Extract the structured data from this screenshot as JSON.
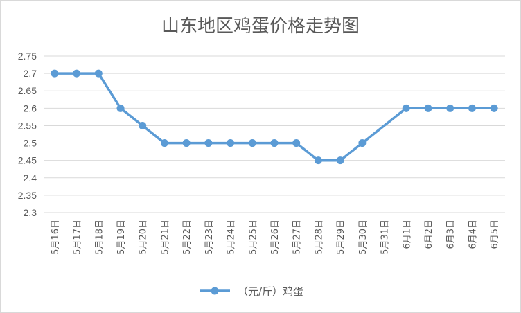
{
  "chart_data": {
    "type": "line",
    "title": "山东地区鸡蛋价格走势图",
    "categories": [
      "5月16日",
      "5月17日",
      "5月18日",
      "5月19日",
      "5月20日",
      "5月21日",
      "5月22日",
      "5月23日",
      "5月24日",
      "5月25日",
      "5月26日",
      "5月27日",
      "5月28日",
      "5月29日",
      "5月30日",
      "5月31日",
      "6月1日",
      "6月2日",
      "6月3日",
      "6月4日",
      "6月5日"
    ],
    "series": [
      {
        "name": "（元/斤）鸡蛋",
        "values": [
          2.7,
          2.7,
          2.7,
          2.6,
          2.55,
          2.5,
          2.5,
          2.5,
          2.5,
          2.5,
          2.5,
          2.5,
          2.45,
          2.45,
          2.5,
          null,
          2.6,
          2.6,
          2.6,
          2.6,
          2.6
        ],
        "color": "#5b9bd5"
      }
    ],
    "ylim": [
      2.3,
      2.75
    ],
    "yticks": [
      "2.3",
      "2.35",
      "2.4",
      "2.45",
      "2.5",
      "2.55",
      "2.6",
      "2.65",
      "2.7",
      "2.75"
    ],
    "grid": true,
    "legend": "bottom",
    "gap_connected": true
  }
}
